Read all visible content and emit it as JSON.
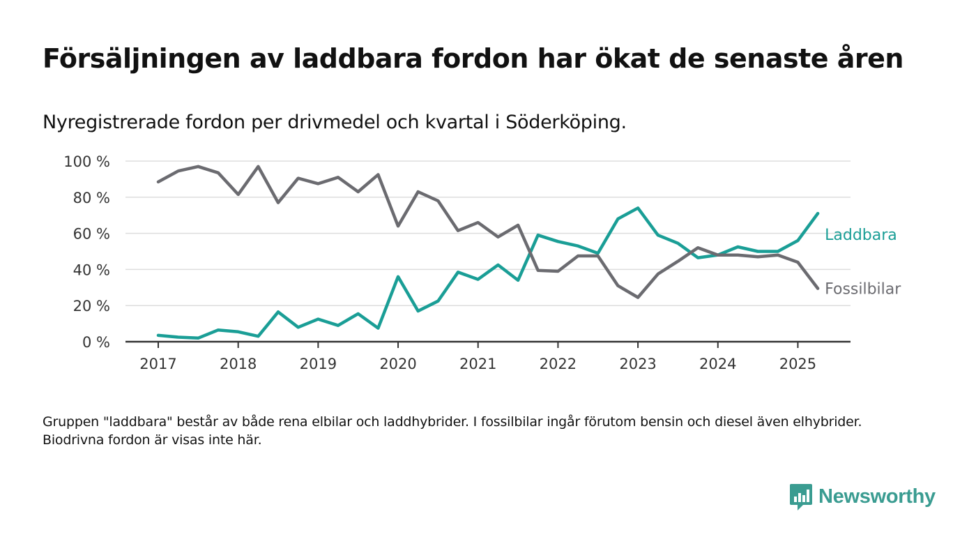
{
  "title": "Försäljningen av laddbara fordon har ökat de senaste åren",
  "subtitle": "Nyregistrerade fordon per drivmedel och kvartal i Söderköping.",
  "footnote": "Gruppen \"laddbara\" består av både rena elbilar och laddhybrider. I fossilbilar ingår förutom bensin och diesel även elhybrider. Biodrivna fordon är visas inte här.",
  "brand": {
    "name": "Newsworthy",
    "icon": "newsworthy-logo-icon",
    "color": "#3a9c91"
  },
  "colors": {
    "laddbara": "#1a9e96",
    "fossil": "#6b6b70",
    "grid": "#dddddd",
    "axis": "#333333"
  },
  "chart_data": {
    "type": "line",
    "x_unit": "quarter",
    "x": [
      "2017-Q1",
      "2017-Q2",
      "2017-Q3",
      "2017-Q4",
      "2018-Q1",
      "2018-Q2",
      "2018-Q3",
      "2018-Q4",
      "2019-Q1",
      "2019-Q2",
      "2019-Q3",
      "2019-Q4",
      "2020-Q1",
      "2020-Q2",
      "2020-Q3",
      "2020-Q4",
      "2021-Q1",
      "2021-Q2",
      "2021-Q3",
      "2021-Q4",
      "2022-Q1",
      "2022-Q2",
      "2022-Q3",
      "2022-Q4",
      "2023-Q1",
      "2023-Q2",
      "2023-Q3",
      "2023-Q4",
      "2024-Q1",
      "2024-Q2",
      "2024-Q3",
      "2024-Q4",
      "2025-Q1",
      "2025-Q2"
    ],
    "xticks": [
      "2017",
      "2018",
      "2019",
      "2020",
      "2021",
      "2022",
      "2023",
      "2024",
      "2025"
    ],
    "ylim": [
      0,
      100
    ],
    "yticks": [
      0,
      20,
      40,
      60,
      80,
      100
    ],
    "ytick_labels": [
      "0 %",
      "20 %",
      "40 %",
      "60 %",
      "80 %",
      "100 %"
    ],
    "grid": true,
    "legend": "inline labels at line ends (right)",
    "series": [
      {
        "name": "Laddbara",
        "color": "#1a9e96",
        "values": [
          3.5,
          2.5,
          2,
          6.5,
          5.5,
          3,
          16.5,
          8,
          12.5,
          9,
          15.5,
          7.5,
          36,
          17,
          22.5,
          38.5,
          34.5,
          42.5,
          34,
          59,
          55.5,
          53,
          49,
          68,
          74,
          59,
          54.5,
          46.5,
          48,
          52.5,
          50,
          50,
          56,
          71
        ]
      },
      {
        "name": "Fossilbilar",
        "color": "#6b6b70",
        "values": [
          88.5,
          94.5,
          97,
          93.5,
          81.5,
          97,
          77,
          90.5,
          87.5,
          91,
          83,
          92.5,
          64,
          83,
          78,
          61.5,
          66,
          58,
          64.5,
          39.5,
          39,
          47.5,
          47.5,
          31,
          24.5,
          37.5,
          44.5,
          52,
          48,
          48,
          47,
          48,
          44,
          29.5
        ]
      }
    ]
  }
}
